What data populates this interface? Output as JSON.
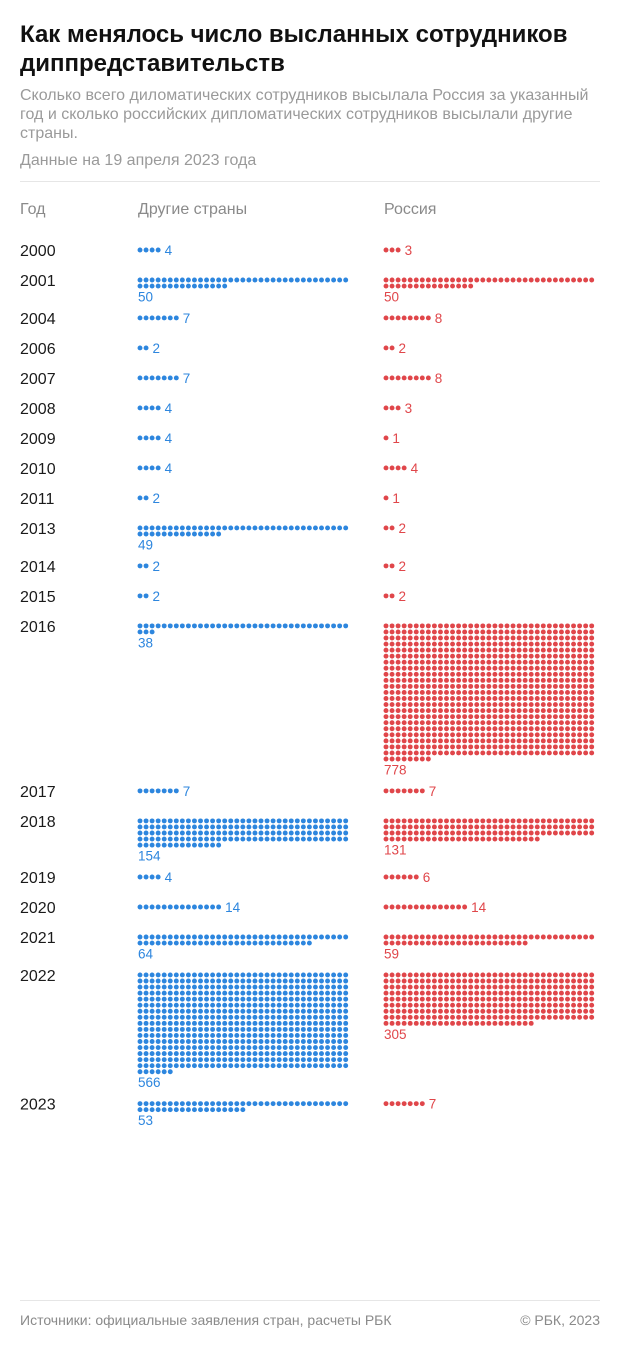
{
  "header": {
    "title": "Как менялось число высланных сотрудников диппредставительств",
    "subtitle": "Сколько всего диломатических сотрудников высылала Россия за указанный год и сколько российских дипломатических сотрудников высылали другие страны.",
    "date_note": "Данные на 19 апреля 2023 года"
  },
  "columns": {
    "year": "Год",
    "others": "Другие страны",
    "russia": "Россия"
  },
  "footer": {
    "sources": "Источники: официальные заявления стран, расчеты РБК",
    "copyright": "© РБК, 2023"
  },
  "colors": {
    "others": "#2d86de",
    "russia": "#e0464a"
  },
  "chart_data": {
    "type": "dot matrix",
    "categories": [
      "2000",
      "2001",
      "2004",
      "2006",
      "2007",
      "2008",
      "2009",
      "2010",
      "2011",
      "2013",
      "2014",
      "2015",
      "2016",
      "2017",
      "2018",
      "2019",
      "2020",
      "2021",
      "2022",
      "2023"
    ],
    "series": [
      {
        "name": "Другие страны",
        "values": [
          4,
          50,
          7,
          2,
          7,
          4,
          4,
          4,
          2,
          49,
          2,
          2,
          38,
          7,
          154,
          4,
          14,
          64,
          566,
          53
        ]
      },
      {
        "name": "Россия",
        "values": [
          3,
          50,
          8,
          2,
          8,
          3,
          1,
          4,
          1,
          2,
          2,
          2,
          778,
          7,
          131,
          6,
          14,
          59,
          305,
          7
        ]
      }
    ]
  }
}
